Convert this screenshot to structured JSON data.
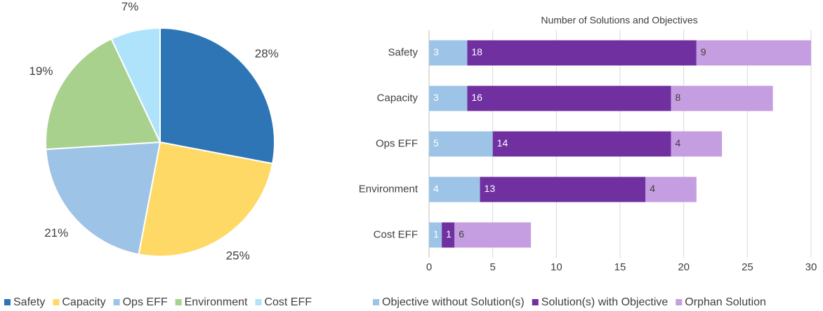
{
  "chart_data": [
    {
      "type": "pie",
      "categories": [
        "Safety",
        "Capacity",
        "Ops EFF",
        "Environment",
        "Cost EFF"
      ],
      "values": [
        28,
        25,
        21,
        19,
        7
      ],
      "value_labels": [
        "28%",
        "25%",
        "21%",
        "19%",
        "7%"
      ],
      "colors": [
        "#2e75b6",
        "#ffd966",
        "#9dc3e6",
        "#a9d18e",
        "#aee3fb"
      ],
      "legend": "bottom"
    },
    {
      "type": "stacked_barh",
      "title": "Number of Solutions and Objectives",
      "categories": [
        "Safety",
        "Capacity",
        "Ops EFF",
        "Environment",
        "Cost EFF"
      ],
      "series": [
        {
          "name": "Objective without Solution(s)",
          "color": "#9dc3e6",
          "values": [
            3,
            3,
            5,
            4,
            1
          ]
        },
        {
          "name": "Solution(s) with Objective",
          "color": "#7030a0",
          "values": [
            18,
            16,
            14,
            13,
            1
          ]
        },
        {
          "name": "Orphan Solution",
          "color": "#c49ee0",
          "values": [
            9,
            8,
            4,
            4,
            6
          ]
        }
      ],
      "xlim": [
        0,
        30
      ],
      "xticks": [
        0,
        5,
        10,
        15,
        20,
        25,
        30
      ],
      "grid": true,
      "legend": "bottom"
    }
  ]
}
